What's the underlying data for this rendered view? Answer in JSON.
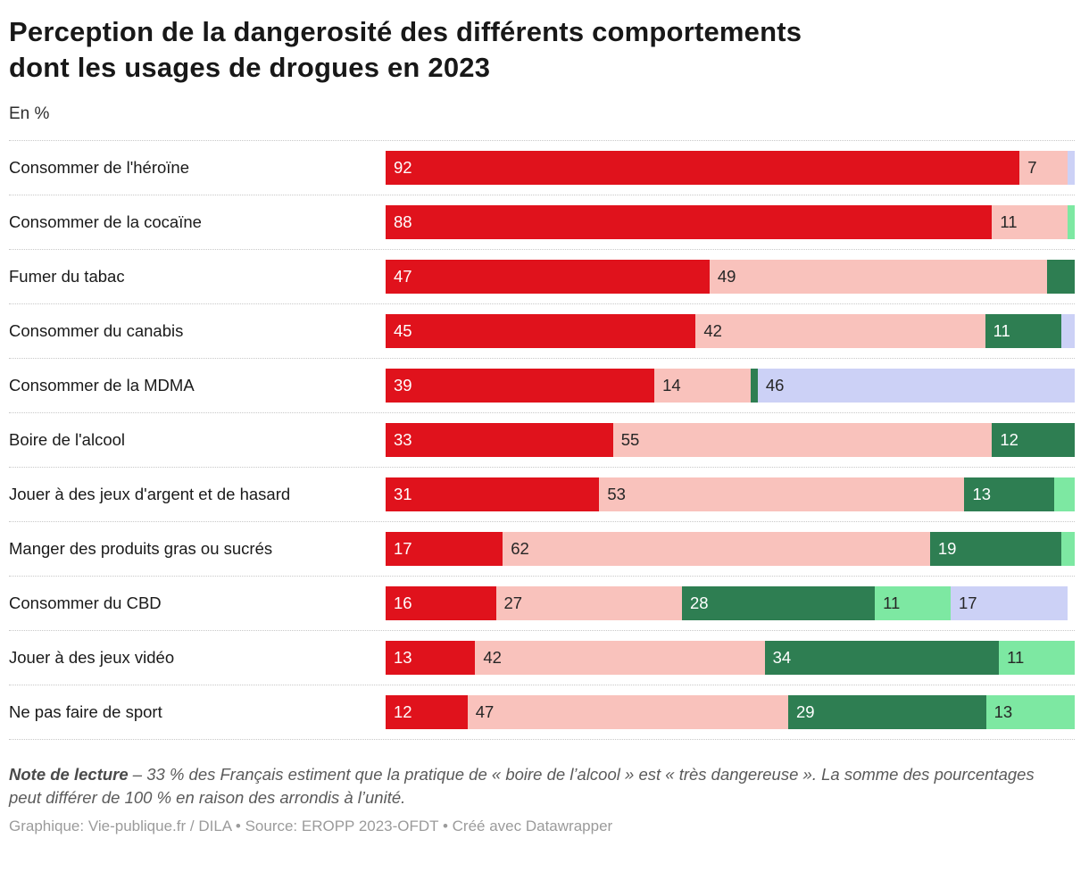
{
  "title_lines": [
    "Perception de la dangerosité des différents comportements",
    "dont les usages de drogues en 2023"
  ],
  "subtitle": "En %",
  "chart_data": {
    "type": "bar",
    "orientation": "horizontal",
    "stacked": true,
    "value_unit": "%",
    "xlim": [
      0,
      100
    ],
    "grid": false,
    "legend": "none",
    "label_min_value": 5,
    "categories": [
      "Consommer de l'héroïne",
      "Consommer de la cocaïne",
      "Fumer du tabac",
      "Consommer du canabis",
      "Consommer de la MDMA",
      "Boire de l'alcool",
      "Jouer à des jeux d'argent et de hasard",
      "Manger des produits gras ou sucrés",
      "Consommer du CBD",
      "Jouer à des jeux vidéo",
      "Ne pas faire de sport"
    ],
    "series": [
      {
        "name": "red",
        "color": "#e0121c",
        "label_color": "#ffffff",
        "values": [
          92,
          88,
          47,
          45,
          39,
          33,
          31,
          17,
          16,
          13,
          12
        ]
      },
      {
        "name": "pink",
        "color": "#f9c2bc",
        "label_color": "#262626",
        "values": [
          7,
          11,
          49,
          42,
          14,
          55,
          53,
          62,
          27,
          42,
          47
        ]
      },
      {
        "name": "dark-green",
        "color": "#2e7e52",
        "label_color": "#ffffff",
        "values": [
          0,
          0,
          4,
          11,
          1,
          12,
          13,
          19,
          28,
          34,
          29
        ]
      },
      {
        "name": "light-green",
        "color": "#7de8a2",
        "label_color": "#262626",
        "values": [
          0,
          1,
          0,
          0,
          0,
          0,
          3,
          2,
          11,
          11,
          13
        ]
      },
      {
        "name": "lavender",
        "color": "#ccd1f6",
        "label_color": "#262626",
        "values": [
          1,
          0,
          0,
          2,
          46,
          0,
          0,
          0,
          17,
          0,
          0
        ]
      }
    ]
  },
  "note": {
    "label": "Note de lecture",
    "text": "– 33 % des Français estiment que la pratique de « boire de l’alcool » est « très dangereuse ». La somme des pourcentages peut différer de 100 % en raison des arrondis à l’unité."
  },
  "footer": "Graphique: Vie-publique.fr / DILA • Source: EROPP 2023-OFDT • Créé avec Datawrapper"
}
